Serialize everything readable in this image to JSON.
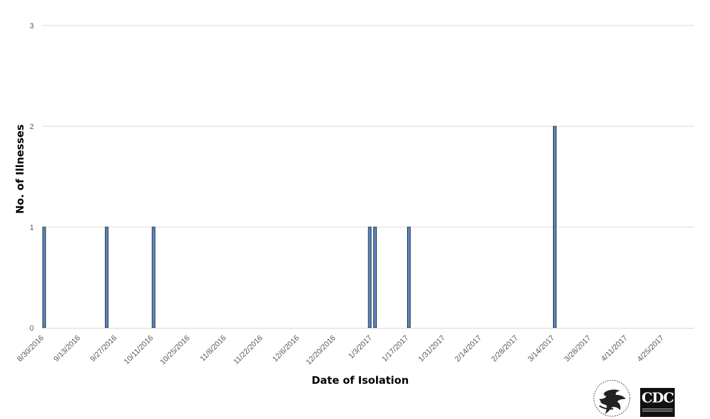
{
  "chart_data": {
    "type": "bar",
    "xlabel": "Date of Isolation",
    "ylabel": "No. of Illnesses",
    "ylim": [
      0,
      3
    ],
    "y_ticks": [
      0,
      1,
      2,
      3
    ],
    "x_range": [
      "2016-08-30",
      "2017-05-07"
    ],
    "x_tick_labels": [
      "8/30/2016",
      "9/13/2016",
      "9/27/2016",
      "10/11/2016",
      "10/25/2016",
      "11/8/2016",
      "11/22/2016",
      "12/6/2016",
      "12/20/2016",
      "1/3/2017",
      "1/17/2017",
      "1/31/2017",
      "2/14/2017",
      "2/28/2017",
      "3/14/2017",
      "3/28/2017",
      "4/11/2017",
      "4/25/2017"
    ],
    "grid": true,
    "bar_color": "#5b8ac6",
    "bar_edge_color": "#1f2a3a",
    "gridline_color": "#d9d9d9",
    "series": [
      {
        "x": [
          "2016-08-30",
          "2016-09-23",
          "2016-10-11",
          "2017-01-02",
          "2017-01-04",
          "2017-01-17",
          "2017-03-14"
        ],
        "values": [
          1,
          1,
          1,
          1,
          1,
          1,
          2
        ]
      }
    ]
  },
  "logos": {
    "hhs": "hhs-eagle-seal",
    "cdc": "CDC"
  }
}
